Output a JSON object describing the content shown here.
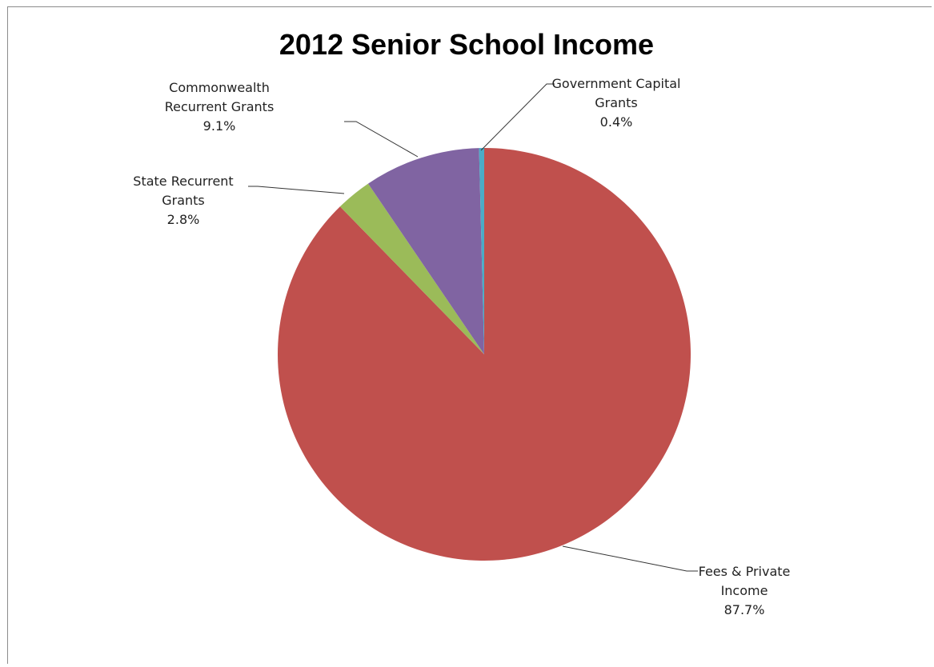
{
  "chart_data": {
    "type": "pie",
    "title": "2012 Senior School Income",
    "start_angle_deg": 0,
    "direction": "clockwise",
    "legend": "none",
    "slices": [
      {
        "name": "Fees & Private Income",
        "label_lines": [
          "Fees & Private",
          "Income"
        ],
        "value": 87.7,
        "percent_label": "87.7%",
        "color": "#c0504d"
      },
      {
        "name": "State Recurrent Grants",
        "label_lines": [
          "State Recurrent",
          "Grants"
        ],
        "value": 2.8,
        "percent_label": "2.8%",
        "color": "#9bbb59"
      },
      {
        "name": "Commonwealth Recurrent Grants",
        "label_lines": [
          "Commonwealth",
          "Recurrent Grants"
        ],
        "value": 9.1,
        "percent_label": "9.1%",
        "color": "#8064a2"
      },
      {
        "name": "Government Capital Grants",
        "label_lines": [
          "Government Capital",
          "Grants"
        ],
        "value": 0.4,
        "percent_label": "0.4%",
        "color": "#4bacc6"
      }
    ]
  }
}
